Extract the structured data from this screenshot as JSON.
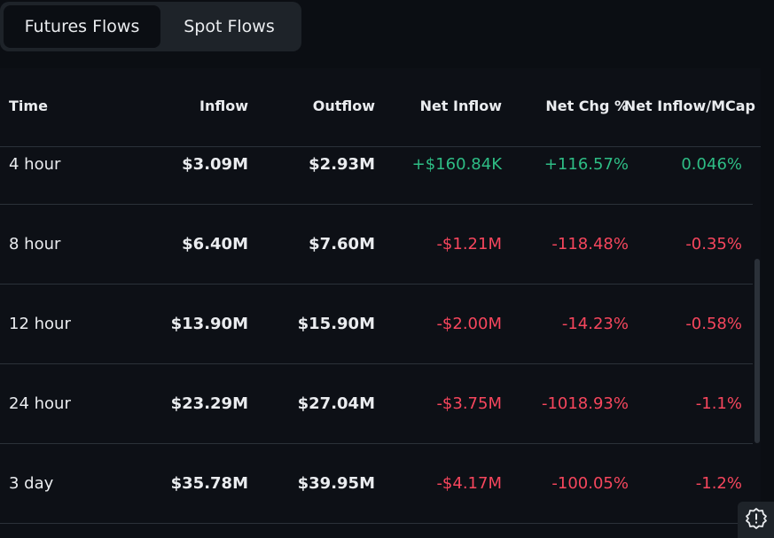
{
  "tabs": [
    {
      "label": "Futures Flows",
      "active": true
    },
    {
      "label": "Spot Flows",
      "active": false
    }
  ],
  "table": {
    "headers": {
      "time": "Time",
      "inflow": "Inflow",
      "outflow": "Outflow",
      "net_inflow": "Net Inflow",
      "net_chg": "Net Chg %",
      "net_mcap": "Net Inflow/MCap"
    },
    "rows": [
      {
        "time": "4 hour",
        "inflow": "$3.09M",
        "outflow": "$2.93M",
        "net_inflow": "+$160.84K",
        "net_chg": "+116.57%",
        "net_mcap": "0.046%",
        "trend": "positive"
      },
      {
        "time": "8 hour",
        "inflow": "$6.40M",
        "outflow": "$7.60M",
        "net_inflow": "-$1.21M",
        "net_chg": "-118.48%",
        "net_mcap": "-0.35%",
        "trend": "negative"
      },
      {
        "time": "12 hour",
        "inflow": "$13.90M",
        "outflow": "$15.90M",
        "net_inflow": "-$2.00M",
        "net_chg": "-14.23%",
        "net_mcap": "-0.58%",
        "trend": "negative"
      },
      {
        "time": "24 hour",
        "inflow": "$23.29M",
        "outflow": "$27.04M",
        "net_inflow": "-$3.75M",
        "net_chg": "-1018.93%",
        "net_mcap": "-1.1%",
        "trend": "negative"
      },
      {
        "time": "3 day",
        "inflow": "$35.78M",
        "outflow": "$39.95M",
        "net_inflow": "-$4.17M",
        "net_chg": "-100.05%",
        "net_mcap": "-1.2%",
        "trend": "negative"
      }
    ]
  },
  "colors": {
    "positive": "#2ebd85",
    "negative": "#f6465d",
    "background": "#0b0e13",
    "panel": "#1e2329"
  },
  "icons": {
    "alert": "alert-gear-icon"
  }
}
